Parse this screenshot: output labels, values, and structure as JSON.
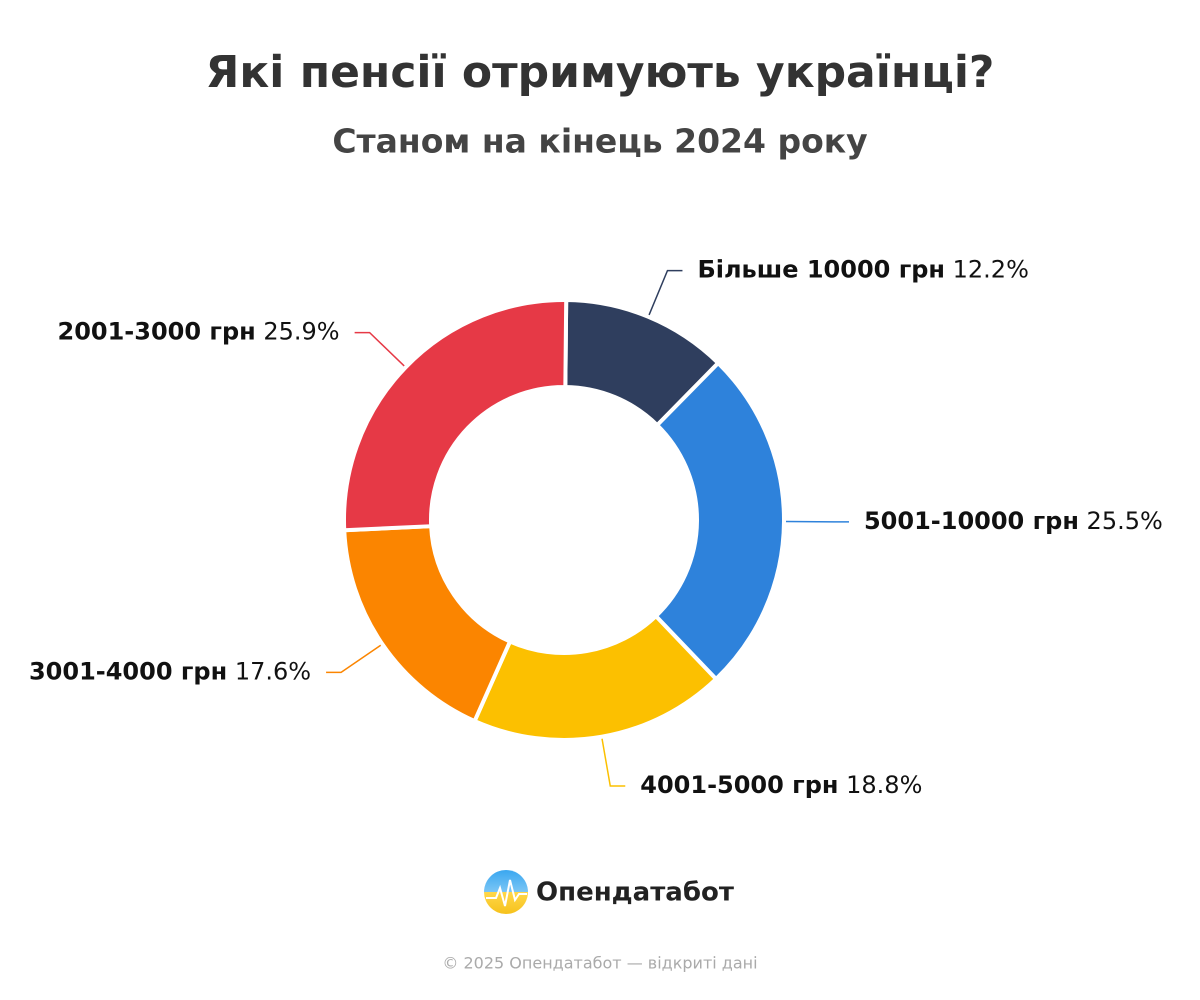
{
  "chart_data": {
    "type": "donut",
    "title": "Які пенсії отримують українці?",
    "subtitle": "Станом на кінець 2024 року",
    "categories": [
      "Більше 10000 грн",
      "5001-10000 грн",
      "4001-5000 грн",
      "3001-4000 грн",
      "2001-3000 грн"
    ],
    "values": [
      12.2,
      25.5,
      18.8,
      17.6,
      25.9
    ],
    "value_labels": [
      "12.2%",
      "25.5%",
      "18.8%",
      "17.6%",
      "25.9%"
    ],
    "colors": [
      "#2f3e5e",
      "#2e82db",
      "#fcc000",
      "#fb8500",
      "#e63946"
    ],
    "brand": "Опендатабот",
    "copyright": "© 2025 Опендатабот — відкриті дані"
  }
}
